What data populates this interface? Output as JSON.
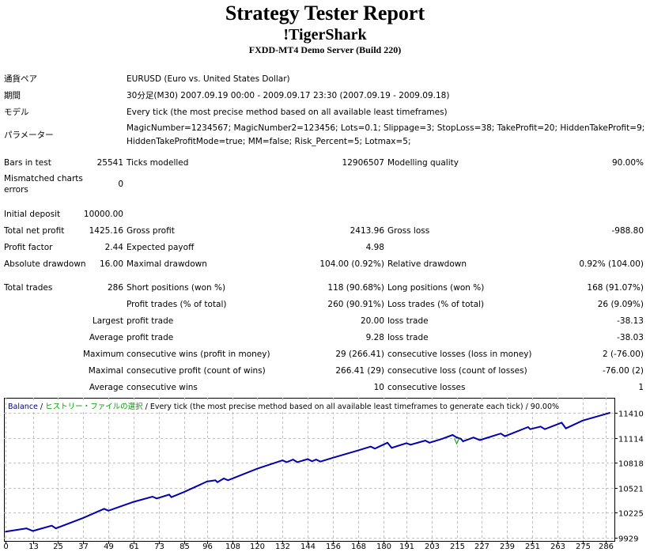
{
  "header": {
    "title": "Strategy Tester Report",
    "expert": "!TigerShark",
    "server": "FXDD-MT4 Demo Server (Build 220)"
  },
  "info": [
    {
      "label": "通貨ペア",
      "value": "EURUSD (Euro vs. United States Dollar)"
    },
    {
      "label": "期間",
      "value": "30分足(M30) 2007.09.19 00:00 - 2009.09.17 23:30 (2007.09.19 - 2009.09.18)"
    },
    {
      "label": "モデル",
      "value": "Every tick (the most precise method based on all available least timeframes)"
    },
    {
      "label": "パラメーター",
      "value": "MagicNumber=1234567; MagicNumber2=123456; Lots=0.1; Slippage=3; StopLoss=38; TakeProfit=20; HiddenTakeProfit=9; HiddenTakeProfitMode=true; MM=false; Risk_Percent=5; Lotmax=5;"
    }
  ],
  "stats": [
    [
      "Bars in test",
      "25541",
      "Ticks modelled",
      "12906507",
      "Modelling quality",
      "90.00%"
    ],
    [
      "Mismatched charts errors",
      "0",
      "",
      "",
      "",
      ""
    ],
    [
      "Initial deposit",
      "10000.00",
      "",
      "",
      "",
      ""
    ],
    [
      "Total net profit",
      "1425.16",
      "Gross profit",
      "2413.96",
      "Gross loss",
      "-988.80"
    ],
    [
      "Profit factor",
      "2.44",
      "Expected payoff",
      "4.98",
      "",
      ""
    ],
    [
      "Absolute drawdown",
      "16.00",
      "Maximal drawdown",
      "104.00 (0.92%)",
      "Relative drawdown",
      "0.92% (104.00)"
    ],
    [
      "Total trades",
      "286",
      "Short positions (won %)",
      "118 (90.68%)",
      "Long positions (won %)",
      "168 (91.07%)"
    ],
    [
      "",
      "",
      "Profit trades (% of total)",
      "260 (90.91%)",
      "Loss trades (% of total)",
      "26 (9.09%)"
    ],
    [
      "",
      "Largest",
      "profit trade",
      "20.00",
      "loss trade",
      "-38.13"
    ],
    [
      "",
      "Average",
      "profit trade",
      "9.28",
      "loss trade",
      "-38.03"
    ],
    [
      "",
      "Maximum",
      "consecutive wins (profit in money)",
      "29 (266.41)",
      "consecutive losses (loss in money)",
      "2 (-76.00)"
    ],
    [
      "",
      "Maximal",
      "consecutive profit (count of wins)",
      "266.41 (29)",
      "consecutive loss (count of losses)",
      "-76.00 (2)"
    ],
    [
      "",
      "Average",
      "consecutive wins",
      "10",
      "consecutive losses",
      "1"
    ]
  ],
  "chart_title": {
    "balance": "Balance",
    "sep1": " / ",
    "history": "ヒストリー・ファイルの選択",
    "rest": " / Every tick (the most precise method based on all available least timeframes to generate each tick) / 90.00%"
  },
  "chart_data": {
    "type": "line",
    "title": "Balance",
    "xlabel": "",
    "ylabel": "",
    "xlim": [
      0,
      288
    ],
    "ylim": [
      9929,
      11410
    ],
    "x_ticks": [
      0,
      13,
      25,
      37,
      49,
      61,
      73,
      85,
      96,
      108,
      120,
      132,
      144,
      156,
      168,
      180,
      191,
      203,
      215,
      227,
      239,
      251,
      263,
      275,
      286
    ],
    "y_ticks": [
      9929,
      10225,
      10521,
      10818,
      11114,
      11410
    ],
    "grid": true,
    "colors": {
      "balance": "#0000b0",
      "marker": "#00a000",
      "grid": "#c0c0c0"
    },
    "series": [
      {
        "name": "Balance",
        "x": [
          0,
          10,
          13,
          22,
          24,
          37,
          47,
          49,
          61,
          70,
          72,
          78,
          79,
          85,
          96,
          100,
          101,
          104,
          106,
          120,
          132,
          134,
          137,
          139,
          144,
          146,
          148,
          150,
          156,
          168,
          174,
          176,
          182,
          184,
          191,
          193,
          200,
          202,
          208,
          213,
          215,
          217,
          218,
          223,
          226,
          236,
          238,
          249,
          250,
          255,
          257,
          265,
          267,
          275,
          288
        ],
        "y": [
          10001,
          10041,
          10010,
          10072,
          10041,
          10164,
          10272,
          10250,
          10355,
          10416,
          10395,
          10441,
          10410,
          10471,
          10595,
          10610,
          10588,
          10632,
          10610,
          10748,
          10847,
          10825,
          10856,
          10825,
          10862,
          10835,
          10856,
          10832,
          10878,
          10964,
          11010,
          10985,
          11056,
          10995,
          11050,
          11032,
          11081,
          11056,
          11102,
          11148,
          11118,
          11102,
          11072,
          11118,
          11087,
          11164,
          11133,
          11241,
          11216,
          11247,
          11216,
          11293,
          11225,
          11318,
          11410
        ]
      }
    ],
    "markers": [
      {
        "x": 215,
        "y": 11070,
        "symbol": "v"
      }
    ]
  }
}
